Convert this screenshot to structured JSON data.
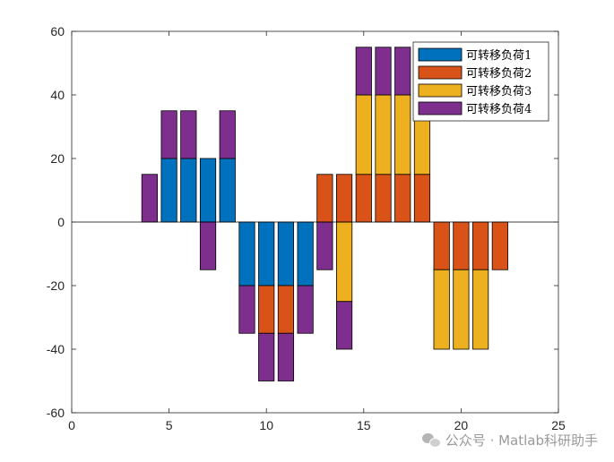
{
  "chart_data": {
    "type": "bar",
    "stacked": true,
    "x": [
      1,
      2,
      3,
      4,
      5,
      6,
      7,
      8,
      9,
      10,
      11,
      12,
      13,
      14,
      15,
      16,
      17,
      18,
      19,
      20,
      21,
      22,
      23,
      24
    ],
    "series": [
      {
        "name": "可转移负荷1",
        "color": "#0072BD",
        "values": [
          0,
          0,
          0,
          0,
          20,
          20,
          20,
          20,
          -20,
          -20,
          -20,
          -20,
          0,
          0,
          0,
          0,
          0,
          0,
          0,
          0,
          0,
          0,
          0,
          0
        ]
      },
      {
        "name": "可转移负荷2",
        "color": "#D95319",
        "values": [
          0,
          0,
          0,
          0,
          0,
          0,
          0,
          0,
          0,
          -15,
          -15,
          0,
          15,
          15,
          15,
          15,
          15,
          15,
          -15,
          -15,
          -15,
          -15,
          0,
          0
        ]
      },
      {
        "name": "可转移负荷3",
        "color": "#EDB120",
        "values": [
          0,
          0,
          0,
          0,
          0,
          0,
          0,
          0,
          0,
          0,
          0,
          0,
          0,
          -25,
          25,
          25,
          25,
          25,
          -25,
          -25,
          -25,
          0,
          0,
          0
        ]
      },
      {
        "name": "可转移负荷4",
        "color": "#7E2F8E",
        "values": [
          0,
          0,
          0,
          15,
          15,
          15,
          -15,
          15,
          -15,
          -15,
          -15,
          -15,
          -15,
          -15,
          15,
          15,
          15,
          0,
          0,
          0,
          0,
          0,
          0,
          0
        ]
      }
    ],
    "xlim": [
      0,
      25
    ],
    "ylim": [
      -60,
      60
    ],
    "xticks": [
      0,
      5,
      10,
      15,
      20,
      25
    ],
    "yticks": [
      -60,
      -40,
      -20,
      0,
      20,
      40,
      60
    ],
    "grid": false,
    "legend_position": "top-right",
    "title": "",
    "xlabel": "",
    "ylabel": ""
  },
  "watermark": {
    "text": "公众号 · Matlab科研助手",
    "icon": "wechat-icon"
  }
}
